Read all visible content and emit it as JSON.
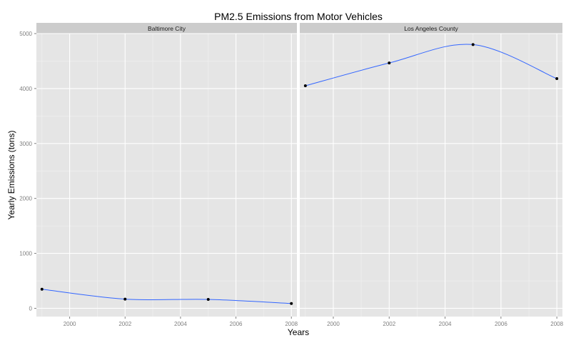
{
  "chart_data": {
    "type": "line",
    "title": "PM2.5 Emissions from Motor Vehicles",
    "xlabel": "Years",
    "ylabel": "Yearly Emissions (tons)",
    "xlim": [
      1998.8,
      2008.2
    ],
    "ylim": [
      -150,
      5000
    ],
    "x_ticks": [
      2000,
      2002,
      2004,
      2006,
      2008
    ],
    "y_ticks": [
      0,
      1000,
      2000,
      3000,
      4000,
      5000
    ],
    "grid": true,
    "smooth": true,
    "line_color": "#3366ff",
    "point_color": "#000000",
    "panel_background": "#e5e5e5",
    "strip_background": "#cccccc",
    "panels": [
      {
        "name": "Baltimore City",
        "points": [
          {
            "x": 1999,
            "y": 347
          },
          {
            "x": 2002,
            "y": 167
          },
          {
            "x": 2005,
            "y": 162
          },
          {
            "x": 2008,
            "y": 88
          }
        ]
      },
      {
        "name": "Los Angeles County",
        "points": [
          {
            "x": 1999,
            "y": 4050
          },
          {
            "x": 2002,
            "y": 4465
          },
          {
            "x": 2005,
            "y": 4800
          },
          {
            "x": 2008,
            "y": 4180
          }
        ]
      }
    ]
  }
}
